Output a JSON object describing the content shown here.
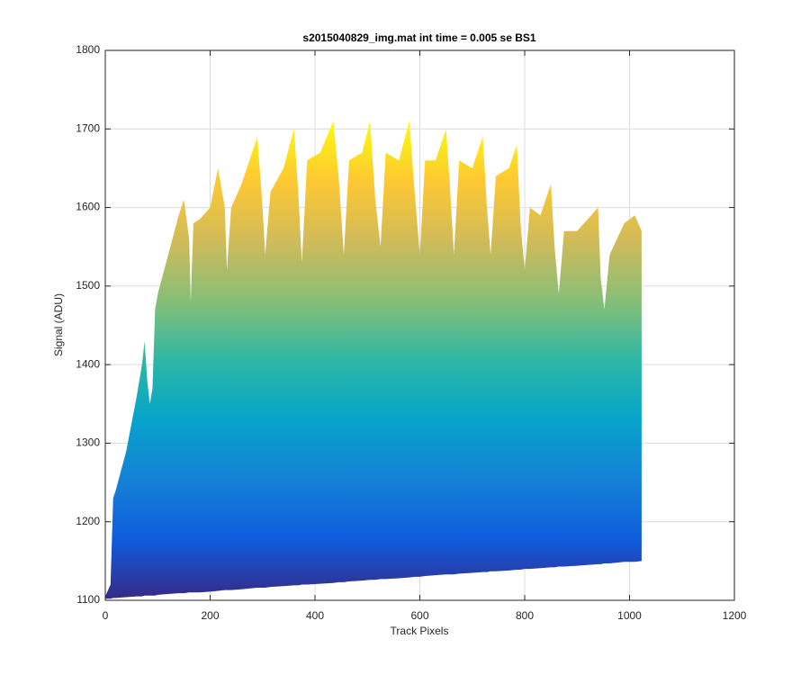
{
  "chart_data": {
    "type": "area_band",
    "title": "s2015040829_img.mat int time = 0.005 se   BS1",
    "xlabel": "Track Pixels",
    "ylabel": "Signal (ADU)",
    "x": [
      0,
      10,
      15,
      20,
      40,
      60,
      70,
      75,
      80,
      85,
      90,
      95,
      100,
      120,
      140,
      150,
      160,
      163,
      168,
      180,
      200,
      215,
      228,
      232,
      240,
      260,
      290,
      300,
      305,
      315,
      340,
      360,
      368,
      375,
      385,
      410,
      435,
      445,
      455,
      465,
      490,
      505,
      515,
      525,
      535,
      560,
      580,
      590,
      600,
      610,
      630,
      650,
      658,
      665,
      675,
      700,
      720,
      728,
      735,
      745,
      770,
      785,
      792,
      800,
      810,
      830,
      850,
      857,
      865,
      875,
      900,
      940,
      945,
      952,
      962,
      990,
      1010,
      1023
    ],
    "series": [
      {
        "values": [
          1105,
          1120,
          1230,
          1240,
          1290,
          1360,
          1400,
          1430,
          1380,
          1350,
          1370,
          1470,
          1490,
          1540,
          1590,
          1610,
          1560,
          1480,
          1580,
          1585,
          1600,
          1650,
          1600,
          1520,
          1600,
          1630,
          1690,
          1600,
          1540,
          1620,
          1650,
          1700,
          1620,
          1530,
          1660,
          1670,
          1710,
          1640,
          1540,
          1660,
          1670,
          1710,
          1610,
          1550,
          1670,
          1660,
          1710,
          1620,
          1540,
          1660,
          1660,
          1700,
          1620,
          1540,
          1660,
          1650,
          1690,
          1600,
          1540,
          1640,
          1650,
          1680,
          1580,
          1520,
          1600,
          1590,
          1630,
          1550,
          1490,
          1570,
          1570,
          1600,
          1510,
          1470,
          1540,
          1580,
          1590,
          1570
        ]
      },
      {
        "values": [
          1102,
          1102,
          1103,
          1103,
          1104,
          1105,
          1105,
          1106,
          1106,
          1106,
          1106,
          1106,
          1107,
          1108,
          1109,
          1109,
          1110,
          1110,
          1110,
          1110,
          1111,
          1112,
          1113,
          1113,
          1113,
          1114,
          1116,
          1116,
          1116,
          1117,
          1118,
          1119,
          1119,
          1120,
          1120,
          1121,
          1122,
          1123,
          1123,
          1124,
          1125,
          1126,
          1126,
          1127,
          1127,
          1128,
          1129,
          1130,
          1130,
          1131,
          1132,
          1133,
          1133,
          1133,
          1134,
          1135,
          1136,
          1136,
          1137,
          1137,
          1138,
          1139,
          1139,
          1140,
          1140,
          1141,
          1142,
          1142,
          1143,
          1143,
          1144,
          1146,
          1146,
          1147,
          1147,
          1149,
          1149,
          1150
        ]
      }
    ],
    "colormap": [
      "#352a87",
      "#0f5cdd",
      "#1481d6",
      "#06a4ca",
      "#2eb7a4",
      "#87bf77",
      "#d1bb59",
      "#fec832",
      "#f9fb0e"
    ],
    "xlim": [
      0,
      1200
    ],
    "xticks": [
      0,
      200,
      400,
      600,
      800,
      1000,
      1200
    ],
    "ylim": [
      1100,
      1800
    ],
    "yticks": [
      1100,
      1200,
      1300,
      1400,
      1500,
      1600,
      1700,
      1800
    ],
    "grid": true
  }
}
